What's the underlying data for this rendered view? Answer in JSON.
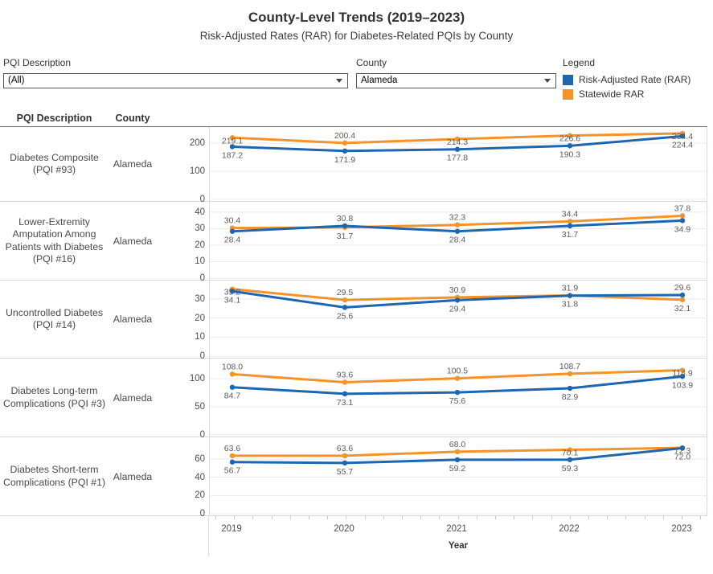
{
  "header": {
    "title": "County-Level Trends (2019–2023)",
    "subtitle": "Risk-Adjusted Rates (RAR) for Diabetes-Related PQIs by County"
  },
  "filters": {
    "pqi": {
      "label": "PQI Description",
      "value": "(All)"
    },
    "county": {
      "label": "County",
      "value": "Alameda"
    }
  },
  "legend": {
    "title": "Legend",
    "items": [
      {
        "label": "Risk-Adjusted Rate (RAR)",
        "color": "#1F66B0"
      },
      {
        "label": "Statewide RAR",
        "color": "#F3932B"
      }
    ]
  },
  "table": {
    "col_pqi": "PQI Description",
    "col_county": "County"
  },
  "x_axis": {
    "years": [
      "2019",
      "2020",
      "2021",
      "2022",
      "2023"
    ],
    "label": "Year"
  },
  "chart_data": {
    "type": "line",
    "x": [
      2019,
      2020,
      2021,
      2022,
      2023
    ],
    "series_names": [
      "Risk-Adjusted Rate (RAR)",
      "Statewide RAR"
    ],
    "colors": {
      "rar": "#1F66B0",
      "statewide": "#F3932B"
    },
    "legend_position": "top-right",
    "grid": true,
    "rows": [
      {
        "pqi": "Diabetes Composite (PQI #93)",
        "county": "Alameda",
        "ticks": [
          0,
          100,
          200
        ],
        "ymax": 257,
        "rar": [
          187.2,
          171.9,
          177.8,
          190.3,
          224.4
        ],
        "statewide": [
          219.1,
          200.4,
          214.3,
          226.6,
          234.4
        ]
      },
      {
        "pqi": "Lower-Extremity Amputation Among Patients with Diabetes (PQI #16)",
        "county": "Alameda",
        "ticks": [
          0,
          10,
          20,
          30,
          40
        ],
        "ymax": 46.3,
        "rar": [
          28.4,
          31.7,
          28.4,
          31.7,
          34.9
        ],
        "statewide": [
          30.4,
          30.8,
          32.3,
          34.4,
          37.8
        ]
      },
      {
        "pqi": "Uncontrolled Diabetes (PQI #14)",
        "county": "Alameda",
        "ticks": [
          0,
          10,
          20,
          30
        ],
        "ymax": 39.7,
        "rar": [
          34.1,
          25.6,
          29.4,
          31.8,
          32.1
        ],
        "statewide": [
          35.2,
          29.5,
          30.9,
          31.9,
          29.6
        ]
      },
      {
        "pqi": "Diabetes Long-term Complications (PQI #3)",
        "county": "Alameda",
        "ticks": [
          0,
          50,
          100
        ],
        "ymax": 135.7,
        "rar": [
          84.7,
          73.1,
          75.6,
          82.9,
          103.9
        ],
        "statewide": [
          108.0,
          93.6,
          100.5,
          108.7,
          114.9
        ]
      },
      {
        "pqi": "Diabetes Short-term Complications (PQI #1)",
        "county": "Alameda",
        "ticks": [
          0,
          20,
          40,
          60
        ],
        "ymax": 83.8,
        "rar": [
          56.7,
          55.7,
          59.2,
          59.3,
          72.0
        ],
        "statewide": [
          63.6,
          63.6,
          68.0,
          70.1,
          72.3
        ]
      }
    ]
  }
}
